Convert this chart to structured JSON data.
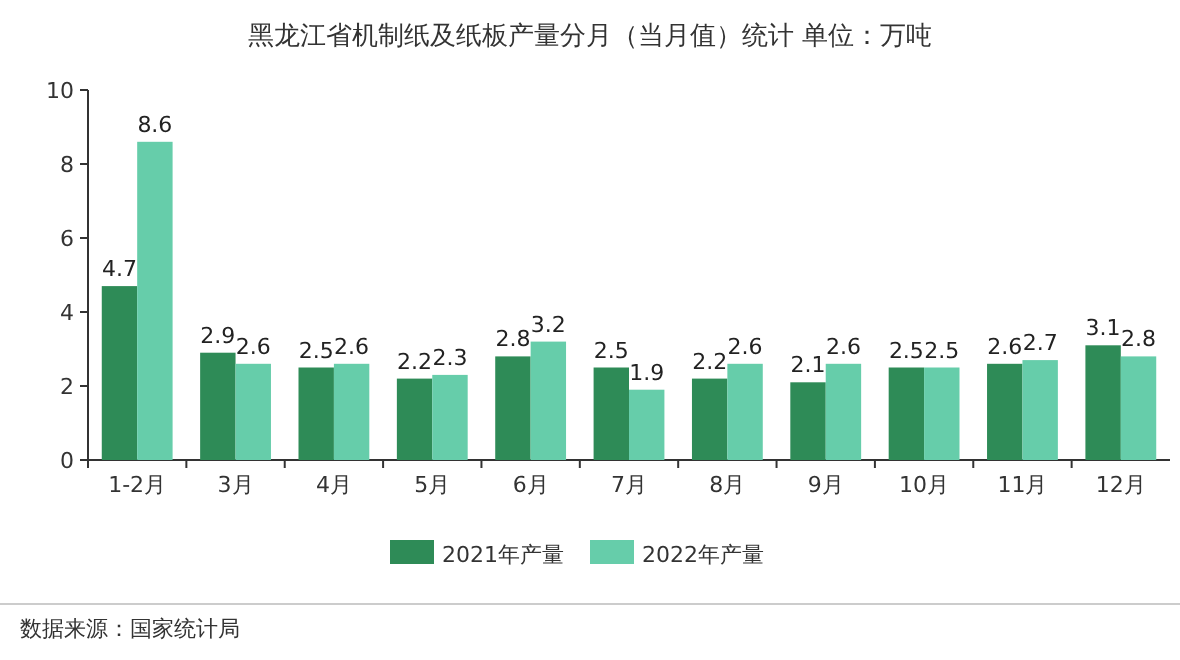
{
  "chart_data": {
    "type": "bar",
    "title": "黑龙江省机制纸及纸板产量分月（当月值）统计 单位：万吨",
    "categories": [
      "1-2月",
      "3月",
      "4月",
      "5月",
      "6月",
      "7月",
      "8月",
      "9月",
      "10月",
      "11月",
      "12月"
    ],
    "series": [
      {
        "name": "2021年产量",
        "color": "#2e8b57",
        "values": [
          4.7,
          2.9,
          2.5,
          2.2,
          2.8,
          2.5,
          2.2,
          2.1,
          2.5,
          2.6,
          3.1
        ]
      },
      {
        "name": "2022年产量",
        "color": "#66cdaa",
        "values": [
          8.6,
          2.6,
          2.6,
          2.3,
          3.2,
          1.9,
          2.6,
          2.6,
          2.5,
          2.7,
          2.8
        ]
      }
    ],
    "ylim": [
      0,
      10
    ],
    "yticks": [
      0,
      2,
      4,
      6,
      8,
      10
    ],
    "data_labels": true,
    "legend": "bottom",
    "annotations": [
      "数据来源：国家统计局"
    ]
  }
}
